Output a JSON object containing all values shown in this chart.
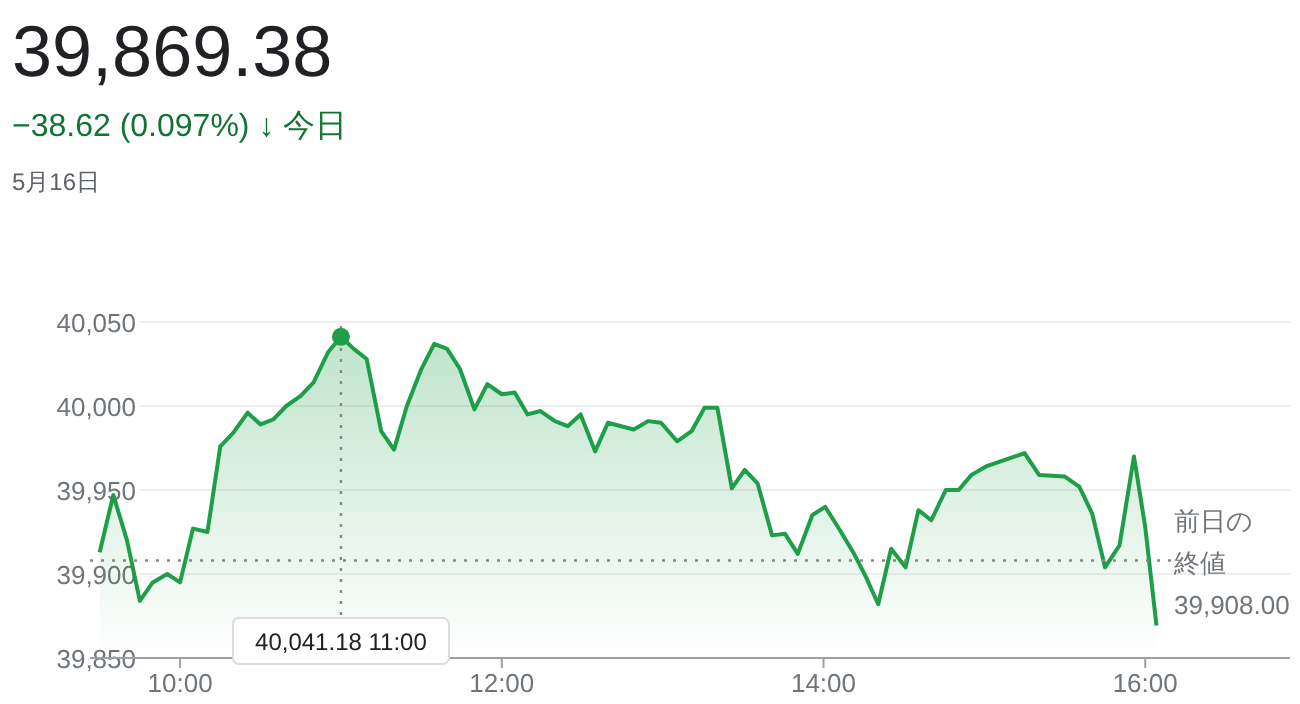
{
  "chart_data": {
    "type": "area",
    "title": "39,869.38",
    "subtitle": "−38.62 (0.097%) ↓ 今日",
    "annotations": [
      "5月16日",
      "40,041.18  11:00"
    ],
    "x": [
      9.5,
      9.585,
      9.67,
      9.75,
      9.83,
      9.92,
      10.0,
      10.08,
      10.17,
      10.25,
      10.33,
      10.42,
      10.5,
      10.58,
      10.66,
      10.75,
      10.83,
      10.92,
      11.0,
      11.08,
      11.16,
      11.25,
      11.33,
      11.41,
      11.5,
      11.58,
      11.66,
      11.74,
      11.83,
      11.91,
      12.0,
      12.08,
      12.16,
      12.24,
      12.33,
      12.41,
      12.49,
      12.58,
      12.66,
      12.82,
      12.91,
      12.99,
      13.09,
      13.18,
      13.26,
      13.34,
      13.43,
      13.51,
      13.59,
      13.68,
      13.76,
      13.84,
      13.93,
      14.01,
      14.09,
      14.19,
      14.26,
      14.34,
      14.42,
      14.51,
      14.59,
      14.67,
      14.76,
      14.84,
      14.92,
      15.01,
      15.25,
      15.34,
      15.5,
      15.59,
      15.67,
      15.75,
      15.84,
      15.93,
      16.0,
      16.07
    ],
    "series": [
      {
        "color": "#1e9e47",
        "values": [
          39913,
          39947,
          39920,
          39884,
          39895,
          39900,
          39895,
          39927,
          39925,
          39976,
          39984,
          39996,
          39989,
          39992,
          40000,
          40006,
          40014,
          40032,
          40041.18,
          40034,
          40028,
          39985,
          39974,
          40000,
          40022,
          40037,
          40034,
          40022,
          39998,
          40013,
          40007,
          40008,
          39995,
          39997,
          39991,
          39988,
          39995,
          39973,
          39990,
          39986,
          39991,
          39990,
          39979,
          39985,
          39999,
          39999,
          39951,
          39962,
          39954,
          39923,
          39924,
          39912,
          39935,
          39940,
          39928,
          39912,
          39899,
          39882,
          39915,
          39904,
          39938,
          39932,
          39950,
          39950,
          39959,
          39964,
          39972,
          39959,
          39958,
          39952,
          39936,
          39904,
          39917,
          39970,
          39928,
          39869.38
        ]
      }
    ],
    "xlim": [
      9.44,
      16.9
    ],
    "ylim": [
      39850,
      40050
    ],
    "xticks": [
      {
        "value": 10,
        "label": "10:00"
      },
      {
        "value": 12,
        "label": "12:00"
      },
      {
        "value": 14,
        "label": "14:00"
      },
      {
        "value": 16,
        "label": "16:00"
      }
    ],
    "yticks": [
      {
        "value": 39850,
        "label": "39,850"
      },
      {
        "value": 39900,
        "label": "39,900"
      },
      {
        "value": 39950,
        "label": "39,950"
      },
      {
        "value": 40000,
        "label": "40,000"
      },
      {
        "value": 40050,
        "label": "40,050"
      }
    ],
    "grid": "y",
    "line_style": "solid",
    "marker": "none",
    "ref_lines": [
      {
        "axis": "y",
        "value": 39908,
        "label": "前日の終値 39,908.00",
        "line_style": "dotted",
        "color": "#888888"
      },
      {
        "axis": "x",
        "value": 11,
        "line_style": "dotted",
        "color": "#888888"
      }
    ]
  }
}
